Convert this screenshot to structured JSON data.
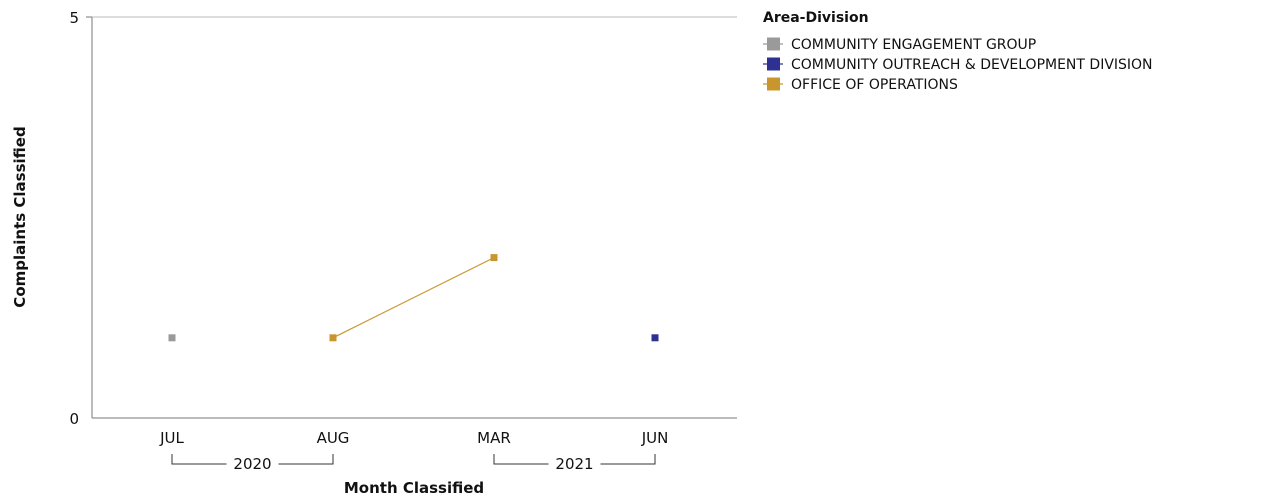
{
  "chart_data": {
    "type": "line",
    "xlabel": "Month Classified",
    "ylabel": "Complaints Classified",
    "ylim": [
      0,
      5
    ],
    "y_ticks": [
      "0",
      "5"
    ],
    "categories": [
      "JUL",
      "AUG",
      "MAR",
      "JUN"
    ],
    "year_groups": [
      {
        "label": "2020",
        "from": 0,
        "to": 1
      },
      {
        "label": "2021",
        "from": 2,
        "to": 3
      }
    ],
    "legend_title": "Area-Division",
    "legend_position": "top-right",
    "grid": false,
    "series": [
      {
        "name": "COMMUNITY ENGAGEMENT GROUP",
        "color": "#9a9a9a",
        "values": [
          1,
          null,
          null,
          null
        ]
      },
      {
        "name": "COMMUNITY OUTREACH & DEVELOPMENT DIVISION",
        "color": "#2e3192",
        "values": [
          null,
          null,
          null,
          1
        ]
      },
      {
        "name": "OFFICE OF OPERATIONS",
        "color": "#c9962e",
        "values": [
          null,
          1,
          2,
          null
        ]
      }
    ]
  }
}
